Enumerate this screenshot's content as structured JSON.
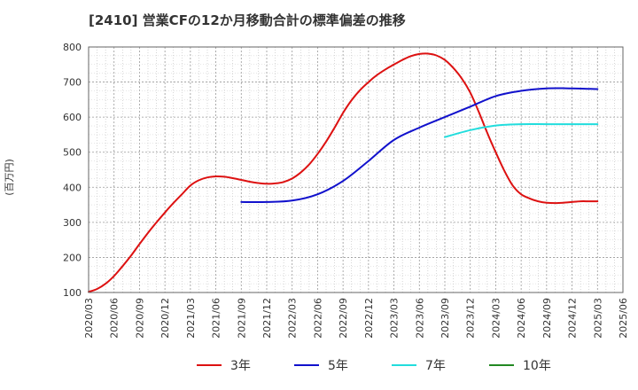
{
  "chart_data": {
    "type": "line",
    "title": "[2410]  営業CFの12か月移動合計の標準偏差の推移",
    "ylabel": "(百万円)",
    "xlabel": "",
    "ylim": [
      100,
      800
    ],
    "yticks": [
      "100",
      "200",
      "300",
      "400",
      "500",
      "600",
      "700",
      "800"
    ],
    "xticks": [
      "2020/03",
      "2020/06",
      "2020/09",
      "2020/12",
      "2021/03",
      "2021/06",
      "2021/09",
      "2021/12",
      "2022/03",
      "2022/06",
      "2022/09",
      "2022/12",
      "2023/03",
      "2023/06",
      "2023/09",
      "2023/12",
      "2024/03",
      "2024/06",
      "2024/09",
      "2024/12",
      "2025/03",
      "2025/06"
    ],
    "grid": true,
    "legend_position": "bottom",
    "series": [
      {
        "name": "3年",
        "color": "#dd1111",
        "x": [
          "2020/03",
          "2020/04",
          "2020/05",
          "2020/06",
          "2020/07",
          "2020/08",
          "2020/09",
          "2020/10",
          "2020/11",
          "2020/12",
          "2021/01",
          "2021/02",
          "2021/03",
          "2021/04",
          "2021/05",
          "2021/06",
          "2021/07",
          "2021/08",
          "2021/09",
          "2021/10",
          "2021/11",
          "2021/12",
          "2022/01",
          "2022/02",
          "2022/03",
          "2022/04",
          "2022/05",
          "2022/06",
          "2022/07",
          "2022/08",
          "2022/09",
          "2022/10",
          "2022/11",
          "2022/12",
          "2023/01",
          "2023/02",
          "2023/03",
          "2023/04",
          "2023/05",
          "2023/06",
          "2023/07",
          "2023/08",
          "2023/09",
          "2023/10",
          "2023/11",
          "2023/12",
          "2024/01",
          "2024/02",
          "2024/03",
          "2024/04",
          "2024/05",
          "2024/06",
          "2024/07",
          "2024/08",
          "2024/09",
          "2024/10",
          "2024/11",
          "2024/12",
          "2025/01",
          "2025/02",
          "2025/03"
        ],
        "values": [
          102,
          110,
          125,
          147,
          175,
          205,
          238,
          270,
          300,
          328,
          355,
          380,
          405,
          420,
          428,
          431,
          430,
          426,
          421,
          416,
          412,
          410,
          411,
          415,
          425,
          442,
          465,
          495,
          530,
          570,
          612,
          648,
          677,
          700,
          720,
          736,
          750,
          763,
          774,
          780,
          781,
          776,
          763,
          740,
          710,
          670,
          615,
          555,
          500,
          448,
          405,
          380,
          368,
          360,
          356,
          355,
          356,
          358,
          360,
          360,
          360
        ],
        "display_end_index": 48
      },
      {
        "name": "5年",
        "color": "#1111cc",
        "x": [
          "2021/09",
          "2021/12",
          "2022/03",
          "2022/06",
          "2022/09",
          "2022/12",
          "2023/03",
          "2023/06",
          "2023/09",
          "2023/12",
          "2024/03",
          "2024/06",
          "2024/09",
          "2024/12",
          "2025/03"
        ],
        "values": [
          358,
          358,
          362,
          380,
          418,
          475,
          535,
          570,
          600,
          630,
          660,
          675,
          682,
          682,
          680
        ]
      },
      {
        "name": "7年",
        "color": "#22dddd",
        "x": [
          "2023/09",
          "2023/12",
          "2024/03",
          "2024/06",
          "2024/09",
          "2024/12",
          "2025/03"
        ],
        "values": [
          543,
          563,
          576,
          580,
          580,
          580,
          580
        ]
      },
      {
        "name": "10年",
        "color": "#228822",
        "x": [],
        "values": []
      }
    ]
  }
}
